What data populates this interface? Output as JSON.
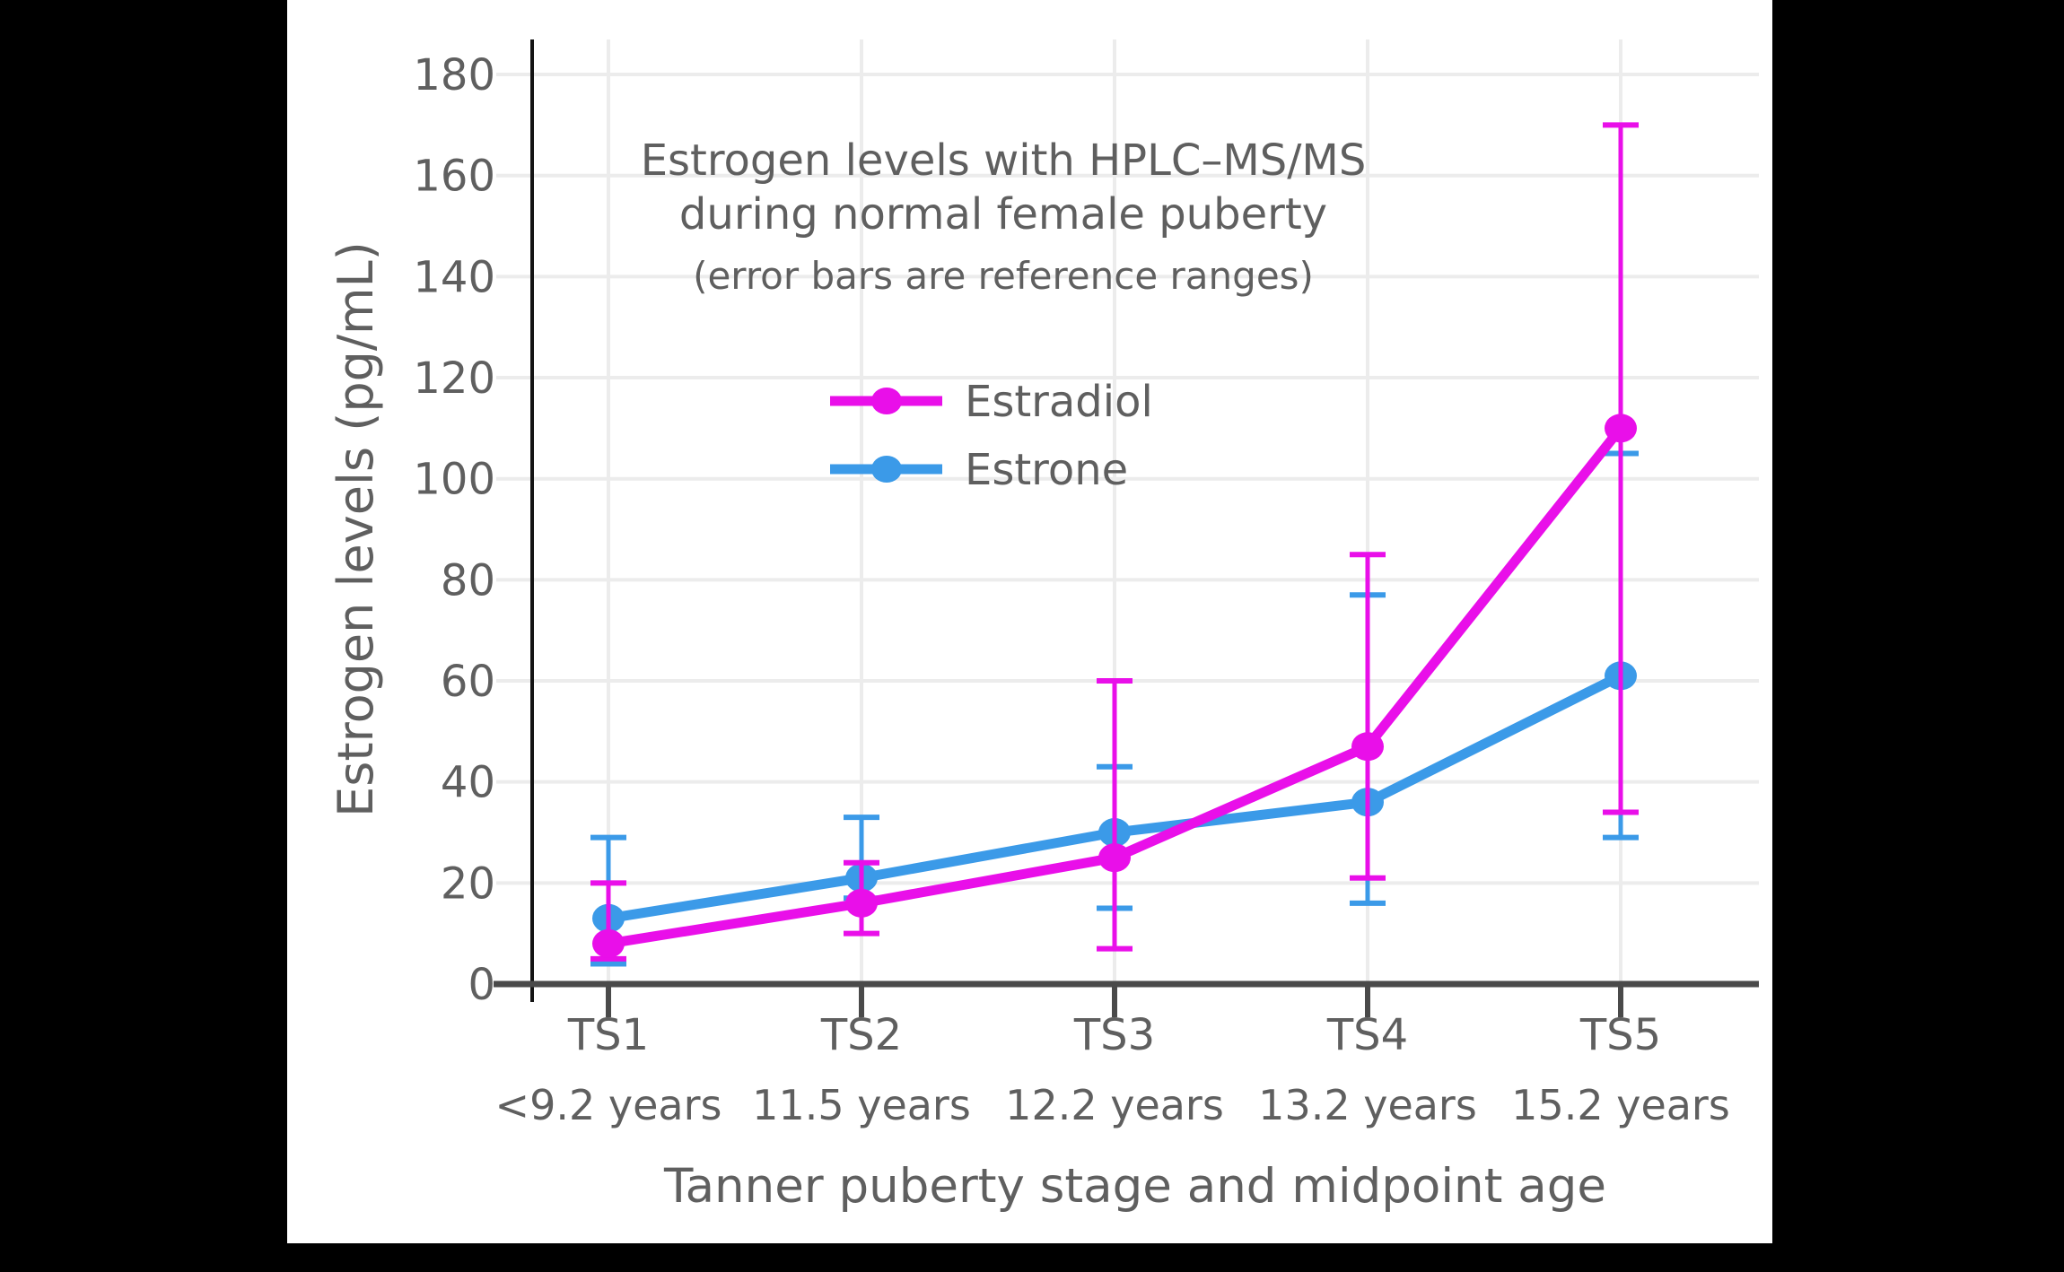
{
  "figure": {
    "title_line1": "Estrogen levels with HPLC–MS/MS",
    "title_line2": "during normal female puberty",
    "subtitle": "(error bars are reference ranges)",
    "y_axis_title": "Estrogen levels (pg/mL)",
    "x_axis_title": "Tanner puberty stage and midpoint age"
  },
  "chart_data": {
    "type": "line",
    "title": "Estrogen levels with HPLC–MS/MS during normal female puberty",
    "subtitle": "(error bars are reference ranges)",
    "xlabel": "Tanner puberty stage and midpoint age",
    "ylabel": "Estrogen levels (pg/mL)",
    "categories": [
      "TS1",
      "TS2",
      "TS3",
      "TS4",
      "TS5"
    ],
    "category_sublabels": [
      "<9.2 years",
      "11.5 years",
      "12.2 years",
      "13.2 years",
      "15.2 years"
    ],
    "y_ticks": [
      0,
      20,
      40,
      60,
      80,
      100,
      120,
      140,
      160,
      180
    ],
    "ylim": [
      0,
      187
    ],
    "grid": true,
    "units": "pg/mL",
    "error_bar_meaning": "reference ranges",
    "legend": {
      "position": "inside-top-center",
      "entries": [
        "Estradiol",
        "Estrone"
      ]
    },
    "series": [
      {
        "name": "Estrone",
        "color": "#3B9AE8",
        "values": [
          13,
          21,
          30,
          36,
          61
        ],
        "error_low": [
          4,
          17,
          15,
          16,
          29
        ],
        "error_high": [
          29,
          33,
          43,
          77,
          105
        ]
      },
      {
        "name": "Estradiol",
        "color": "#E90FE9",
        "values": [
          8,
          16,
          25,
          47,
          110
        ],
        "error_low": [
          5,
          10,
          7,
          21,
          34
        ],
        "error_high": [
          20,
          24,
          60,
          85,
          170
        ]
      }
    ]
  },
  "colors": {
    "page_background": "#000000",
    "panel_background": "#FFFFFF",
    "text": "#5F5F5F",
    "gridline": "#ECECEC",
    "x_axis_line": "#4A4A4A",
    "y_axis_line": "#141414"
  }
}
